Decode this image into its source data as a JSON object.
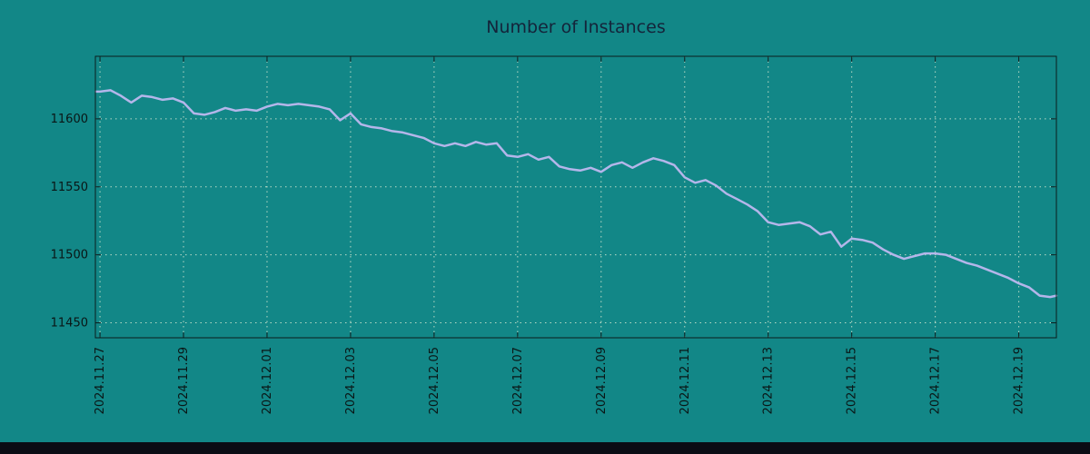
{
  "title": "Number of Instances",
  "colors": {
    "background": "#128787",
    "line": "#b4b6ea",
    "grid": "#d9e9d2",
    "axis": "#0a1c1c",
    "text": "#0a1616",
    "title_text": "#14243a",
    "bottom_bar": "#0a0c14"
  },
  "chart_data": {
    "type": "line",
    "title": "Number of Instances",
    "xlabel": "",
    "ylabel": "",
    "legend": "none",
    "grid": "dotted",
    "x_tick_labels": [
      "2024.11.27",
      "2024.11.29",
      "2024.12.01",
      "2024.12.03",
      "2024.12.05",
      "2024.12.07",
      "2024.12.09",
      "2024.12.11",
      "2024.12.13",
      "2024.12.15",
      "2024.12.17",
      "2024.12.19"
    ],
    "x_tick_days": [
      0,
      2,
      4,
      6,
      8,
      10,
      12,
      14,
      16,
      18,
      20,
      22
    ],
    "y_ticks": [
      11450,
      11500,
      11550,
      11600
    ],
    "x_range_days": [
      -0.11,
      22.9
    ],
    "y_range": [
      11439,
      11646
    ],
    "series": [
      {
        "name": "instances",
        "points": [
          [
            -0.1,
            11620
          ],
          [
            0.0,
            11620
          ],
          [
            0.25,
            11621
          ],
          [
            0.5,
            11617
          ],
          [
            0.75,
            11612
          ],
          [
            1.0,
            11617
          ],
          [
            1.25,
            11616
          ],
          [
            1.5,
            11614
          ],
          [
            1.75,
            11615
          ],
          [
            2.0,
            11612
          ],
          [
            2.25,
            11604
          ],
          [
            2.5,
            11603
          ],
          [
            2.75,
            11605
          ],
          [
            3.0,
            11608
          ],
          [
            3.25,
            11606
          ],
          [
            3.5,
            11607
          ],
          [
            3.75,
            11606
          ],
          [
            4.0,
            11609
          ],
          [
            4.25,
            11611
          ],
          [
            4.5,
            11610
          ],
          [
            4.75,
            11611
          ],
          [
            5.0,
            11610
          ],
          [
            5.25,
            11609
          ],
          [
            5.5,
            11607
          ],
          [
            5.75,
            11599
          ],
          [
            6.0,
            11604
          ],
          [
            6.25,
            11596
          ],
          [
            6.5,
            11594
          ],
          [
            6.75,
            11593
          ],
          [
            7.0,
            11591
          ],
          [
            7.25,
            11590
          ],
          [
            7.5,
            11588
          ],
          [
            7.75,
            11586
          ],
          [
            8.0,
            11582
          ],
          [
            8.25,
            11580
          ],
          [
            8.5,
            11582
          ],
          [
            8.75,
            11580
          ],
          [
            9.0,
            11583
          ],
          [
            9.25,
            11581
          ],
          [
            9.5,
            11582
          ],
          [
            9.75,
            11573
          ],
          [
            10.0,
            11572
          ],
          [
            10.25,
            11574
          ],
          [
            10.5,
            11570
          ],
          [
            10.75,
            11572
          ],
          [
            11.0,
            11565
          ],
          [
            11.25,
            11563
          ],
          [
            11.5,
            11562
          ],
          [
            11.75,
            11564
          ],
          [
            12.0,
            11561
          ],
          [
            12.25,
            11566
          ],
          [
            12.5,
            11568
          ],
          [
            12.75,
            11564
          ],
          [
            13.0,
            11568
          ],
          [
            13.25,
            11571
          ],
          [
            13.5,
            11569
          ],
          [
            13.75,
            11566
          ],
          [
            14.0,
            11557
          ],
          [
            14.25,
            11553
          ],
          [
            14.5,
            11555
          ],
          [
            14.75,
            11551
          ],
          [
            15.0,
            11545
          ],
          [
            15.25,
            11541
          ],
          [
            15.5,
            11537
          ],
          [
            15.75,
            11532
          ],
          [
            16.0,
            11524
          ],
          [
            16.25,
            11522
          ],
          [
            16.5,
            11523
          ],
          [
            16.75,
            11524
          ],
          [
            17.0,
            11521
          ],
          [
            17.25,
            11515
          ],
          [
            17.5,
            11517
          ],
          [
            17.75,
            11506
          ],
          [
            18.0,
            11512
          ],
          [
            18.25,
            11511
          ],
          [
            18.5,
            11509
          ],
          [
            18.75,
            11504
          ],
          [
            19.0,
            11500
          ],
          [
            19.25,
            11497
          ],
          [
            19.5,
            11499
          ],
          [
            19.75,
            11501
          ],
          [
            20.0,
            11501
          ],
          [
            20.25,
            11500
          ],
          [
            20.5,
            11497
          ],
          [
            20.75,
            11494
          ],
          [
            21.0,
            11492
          ],
          [
            21.25,
            11489
          ],
          [
            21.5,
            11486
          ],
          [
            21.75,
            11483
          ],
          [
            22.0,
            11479
          ],
          [
            22.25,
            11476
          ],
          [
            22.5,
            11470
          ],
          [
            22.75,
            11469
          ],
          [
            22.9,
            11470
          ]
        ]
      }
    ]
  }
}
